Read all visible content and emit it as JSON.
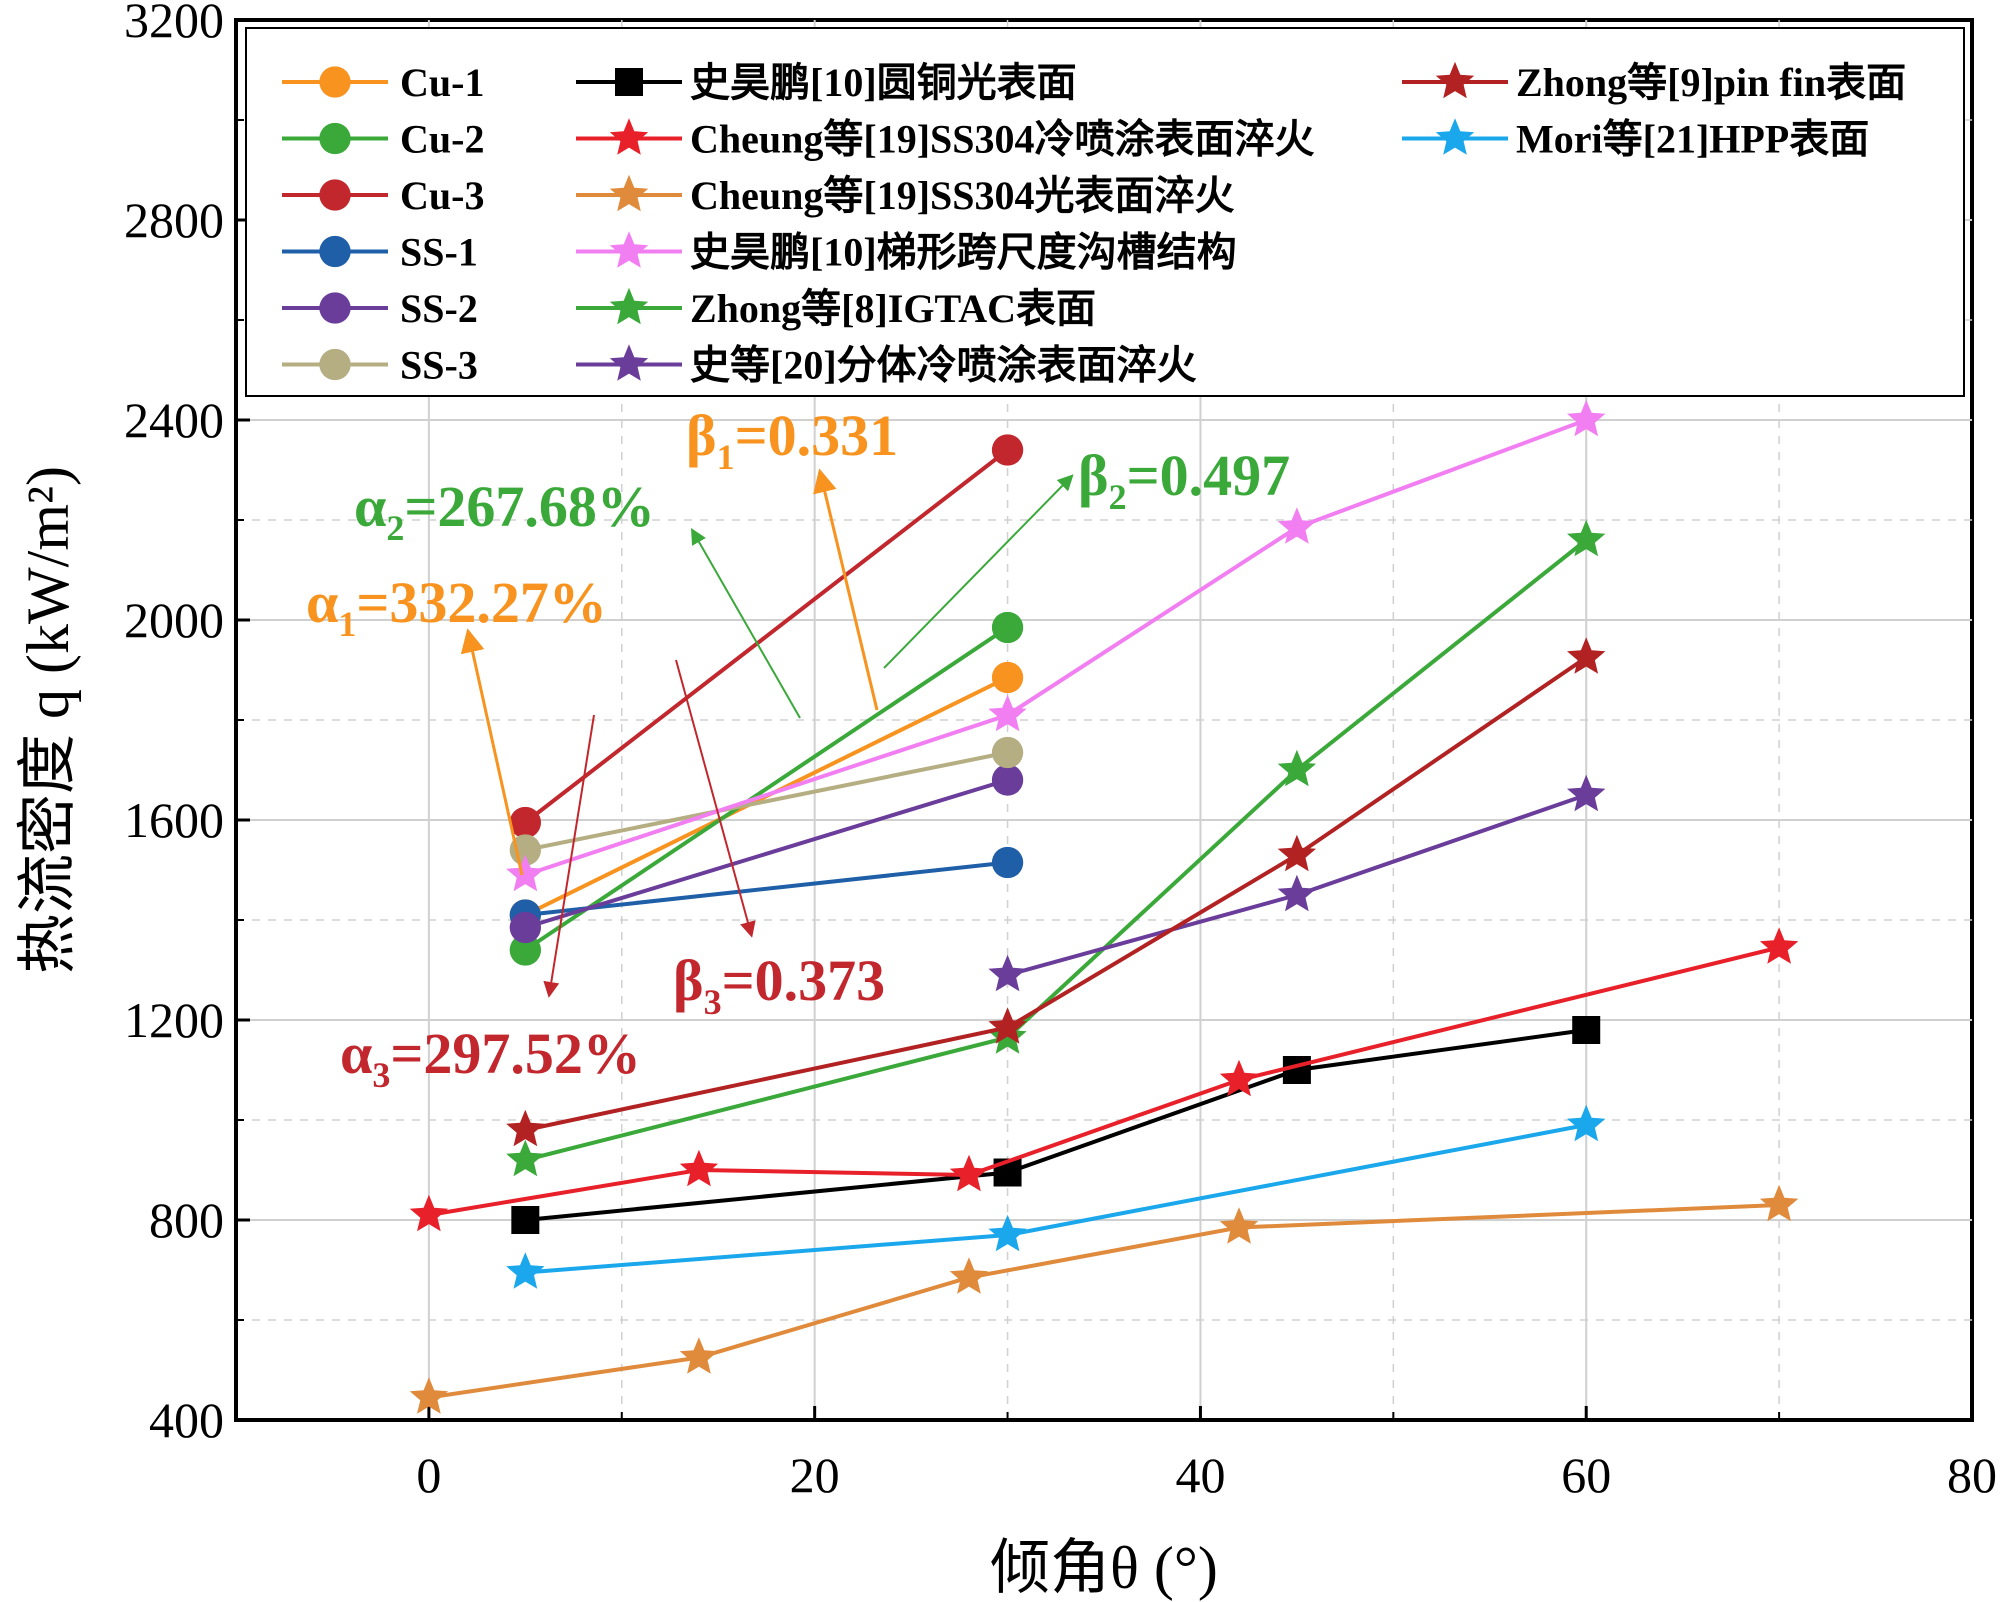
{
  "chart_data": {
    "type": "line",
    "xlabel": "倾角θ (°)",
    "ylabel": "热流密度 q (kW/m²)",
    "xlim": [
      -10,
      80
    ],
    "ylim": [
      400,
      3200
    ],
    "xticks": [
      0,
      20,
      40,
      60,
      80
    ],
    "yticks": [
      400,
      800,
      1200,
      1600,
      2000,
      2400,
      2800,
      3200
    ],
    "grid": true,
    "legend_position": "top",
    "series": [
      {
        "name": "Cu-1",
        "color": "#F7931E",
        "marker": "circle",
        "x": [
          5,
          30
        ],
        "y": [
          1410,
          1885
        ]
      },
      {
        "name": "Cu-2",
        "color": "#3AA93A",
        "marker": "circle",
        "x": [
          5,
          30
        ],
        "y": [
          1340,
          1985
        ]
      },
      {
        "name": "Cu-3",
        "color": "#C1272D",
        "marker": "circle",
        "x": [
          5,
          30
        ],
        "y": [
          1595,
          2340
        ]
      },
      {
        "name": "SS-1",
        "color": "#1F5FA8",
        "marker": "circle",
        "x": [
          5,
          30
        ],
        "y": [
          1410,
          1515
        ]
      },
      {
        "name": "SS-2",
        "color": "#6A3D9A",
        "marker": "circle",
        "x": [
          5,
          30
        ],
        "y": [
          1385,
          1680
        ]
      },
      {
        "name": "SS-3",
        "color": "#B5AE82",
        "marker": "circle",
        "x": [
          5,
          30
        ],
        "y": [
          1540,
          1735
        ]
      },
      {
        "name": "史昊鹏[10]圆铜光表面",
        "color": "#000000",
        "marker": "square",
        "x": [
          5,
          30,
          45,
          60
        ],
        "y": [
          800,
          895,
          1100,
          1180
        ]
      },
      {
        "name": "Cheung等[19]SS304冷喷涂表面淬火",
        "color": "#E8202A",
        "marker": "star",
        "x": [
          0,
          14,
          28,
          42,
          70
        ],
        "y": [
          810,
          900,
          890,
          1080,
          1345
        ]
      },
      {
        "name": "Cheung等[19]SS304光表面淬火",
        "color": "#E08A3C",
        "marker": "star",
        "x": [
          0,
          14,
          28,
          42,
          70
        ],
        "y": [
          445,
          525,
          685,
          785,
          830
        ]
      },
      {
        "name": "史昊鹏[10]梯形跨尺度沟槽结构",
        "color": "#F27FF2",
        "marker": "star",
        "x": [
          5,
          30,
          45,
          60
        ],
        "y": [
          1490,
          1810,
          2185,
          2400
        ]
      },
      {
        "name": "Zhong等[8]IGTAC表面",
        "color": "#3AA93A",
        "marker": "star",
        "x": [
          5,
          30,
          45,
          60
        ],
        "y": [
          920,
          1165,
          1700,
          2160
        ]
      },
      {
        "name": "史等[20]分体冷喷涂表面淬火",
        "color": "#6A3D9A",
        "marker": "star",
        "x": [
          30,
          45,
          60
        ],
        "y": [
          1290,
          1450,
          1650
        ]
      },
      {
        "name": "Zhong等[9]pin fin表面",
        "color": "#B22222",
        "marker": "star",
        "x": [
          5,
          30,
          45,
          60
        ],
        "y": [
          980,
          1185,
          1530,
          1925
        ]
      },
      {
        "name": "Mori等[21]HPP表面",
        "color": "#1AA7EC",
        "marker": "star",
        "x": [
          5,
          30,
          60
        ],
        "y": [
          695,
          770,
          990
        ]
      }
    ],
    "annotations": [
      {
        "base": "β",
        "sub": "1",
        "rest": "=0.331",
        "color": "#F7931E"
      },
      {
        "base": "β",
        "sub": "2",
        "rest": "=0.497",
        "color": "#3AA93A"
      },
      {
        "base": "β",
        "sub": "3",
        "rest": "=0.373",
        "color": "#C1272D"
      },
      {
        "base": "α",
        "sub": "1",
        "rest": "=332.27%",
        "color": "#F7931E"
      },
      {
        "base": "α",
        "sub": "2",
        "rest": "=267.68%",
        "color": "#3AA93A"
      },
      {
        "base": "α",
        "sub": "3",
        "rest": "=297.52%",
        "color": "#C1272D"
      }
    ]
  }
}
